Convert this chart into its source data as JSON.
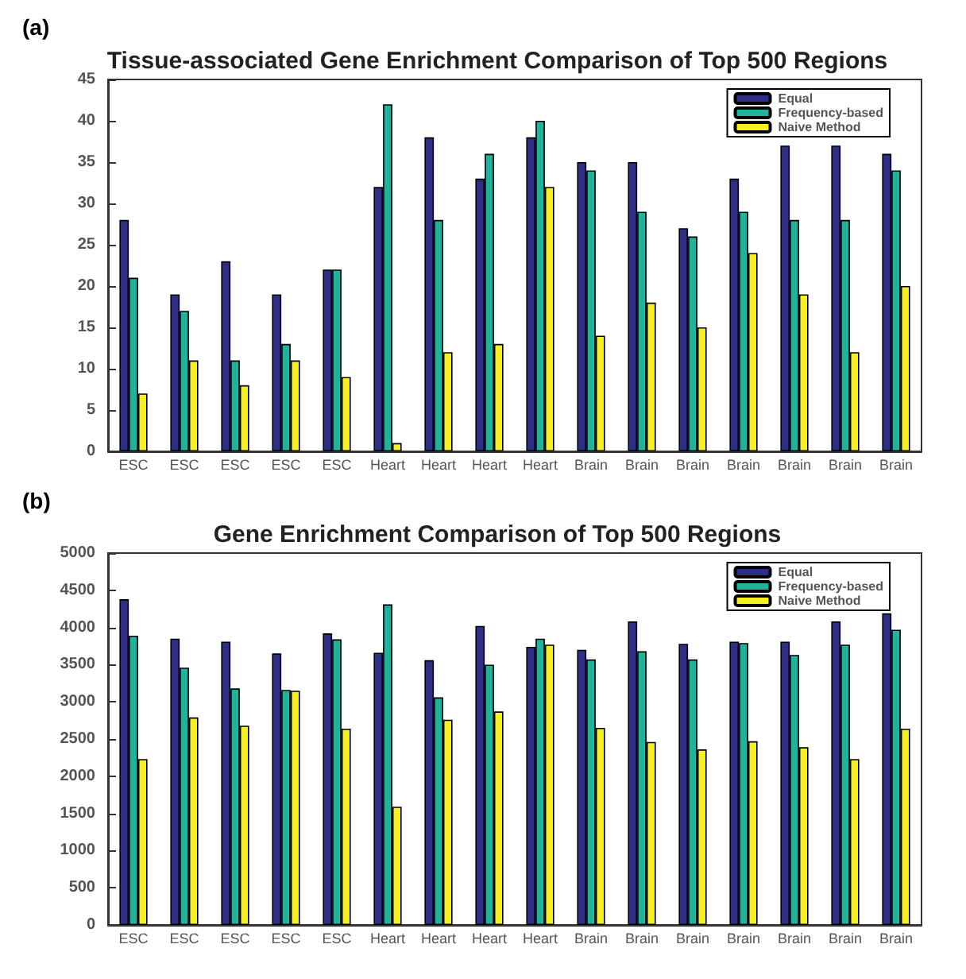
{
  "chart_data": [
    {
      "type": "bar",
      "title": "Tissue-associated Gene Enrichment Comparison of Top 500 Regions",
      "annotations": [
        "(a)"
      ],
      "categories": [
        "ESC",
        "ESC",
        "ESC",
        "ESC",
        "ESC",
        "Heart",
        "Heart",
        "Heart",
        "Heart",
        "Brain",
        "Brain",
        "Brain",
        "Brain",
        "Brain",
        "Brain",
        "Brain"
      ],
      "series": [
        {
          "name": "Equal",
          "color": "#2e2e85",
          "values": [
            28,
            19,
            23,
            19,
            22,
            32,
            38,
            33,
            38,
            35,
            35,
            27,
            33,
            37,
            37,
            36
          ]
        },
        {
          "name": "Frequency-based",
          "color": "#22b39a",
          "values": [
            21,
            17,
            11,
            13,
            22,
            42,
            28,
            36,
            40,
            34,
            29,
            26,
            29,
            28,
            28,
            34
          ]
        },
        {
          "name": "Naive Method",
          "color": "#f5f01e",
          "values": [
            7,
            11,
            8,
            11,
            9,
            1,
            12,
            13,
            32,
            14,
            18,
            15,
            24,
            19,
            12,
            20
          ]
        }
      ],
      "ylim": [
        0,
        45
      ],
      "yticks": [
        0,
        5,
        10,
        15,
        20,
        25,
        30,
        35,
        40,
        45
      ],
      "grid": false,
      "legend": "top right"
    },
    {
      "type": "bar",
      "title": "Gene Enrichment Comparison of Top 500 Regions",
      "annotations": [
        "(b)"
      ],
      "categories": [
        "ESC",
        "ESC",
        "ESC",
        "ESC",
        "ESC",
        "Heart",
        "Heart",
        "Heart",
        "Heart",
        "Brain",
        "Brain",
        "Brain",
        "Brain",
        "Brain",
        "Brain",
        "Brain"
      ],
      "series": [
        {
          "name": "Equal",
          "color": "#2e2e85",
          "values": [
            4380,
            3850,
            3810,
            3650,
            3920,
            3660,
            3560,
            4020,
            3740,
            3700,
            4080,
            3780,
            3810,
            3810,
            4080,
            4190
          ]
        },
        {
          "name": "Frequency-based",
          "color": "#22b39a",
          "values": [
            3890,
            3460,
            3180,
            3160,
            3840,
            4310,
            3060,
            3500,
            3850,
            3570,
            3680,
            3570,
            3790,
            3630,
            3770,
            3970
          ]
        },
        {
          "name": "Naive Method",
          "color": "#f5f01e",
          "values": [
            2230,
            2790,
            2680,
            3150,
            2640,
            1590,
            2760,
            2870,
            3770,
            2650,
            2460,
            2360,
            2470,
            2390,
            2230,
            2640
          ]
        }
      ],
      "ylim": [
        0,
        5000
      ],
      "yticks": [
        0,
        500,
        1000,
        1500,
        2000,
        2500,
        3000,
        3500,
        4000,
        4500,
        5000
      ],
      "grid": false,
      "legend": "top right"
    }
  ]
}
